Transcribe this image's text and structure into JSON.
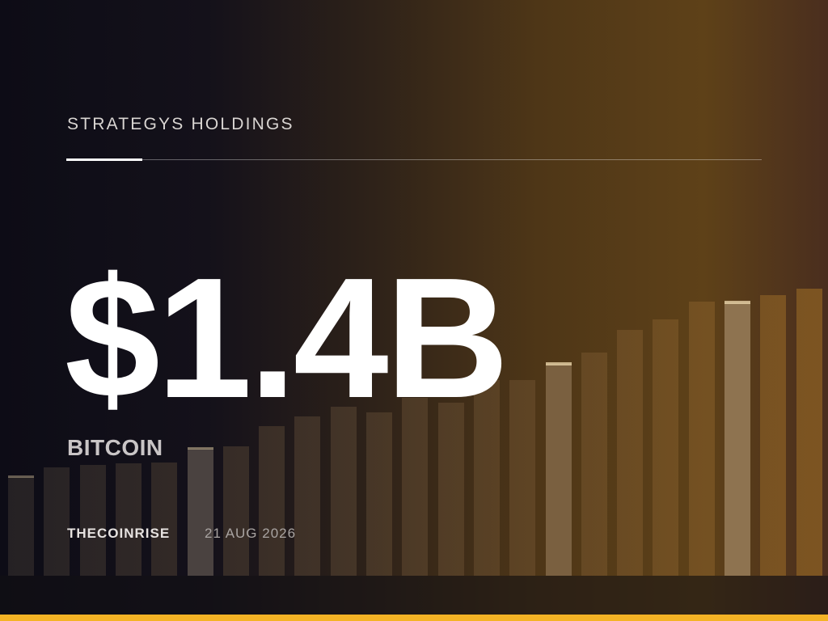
{
  "header": {
    "title": "STRATEGYS HOLDINGS"
  },
  "headline": "$1.4B",
  "subtitle": "BITCOIN",
  "footer": {
    "source": "THECOINRISE",
    "date": "21 AUG 2026"
  }
}
